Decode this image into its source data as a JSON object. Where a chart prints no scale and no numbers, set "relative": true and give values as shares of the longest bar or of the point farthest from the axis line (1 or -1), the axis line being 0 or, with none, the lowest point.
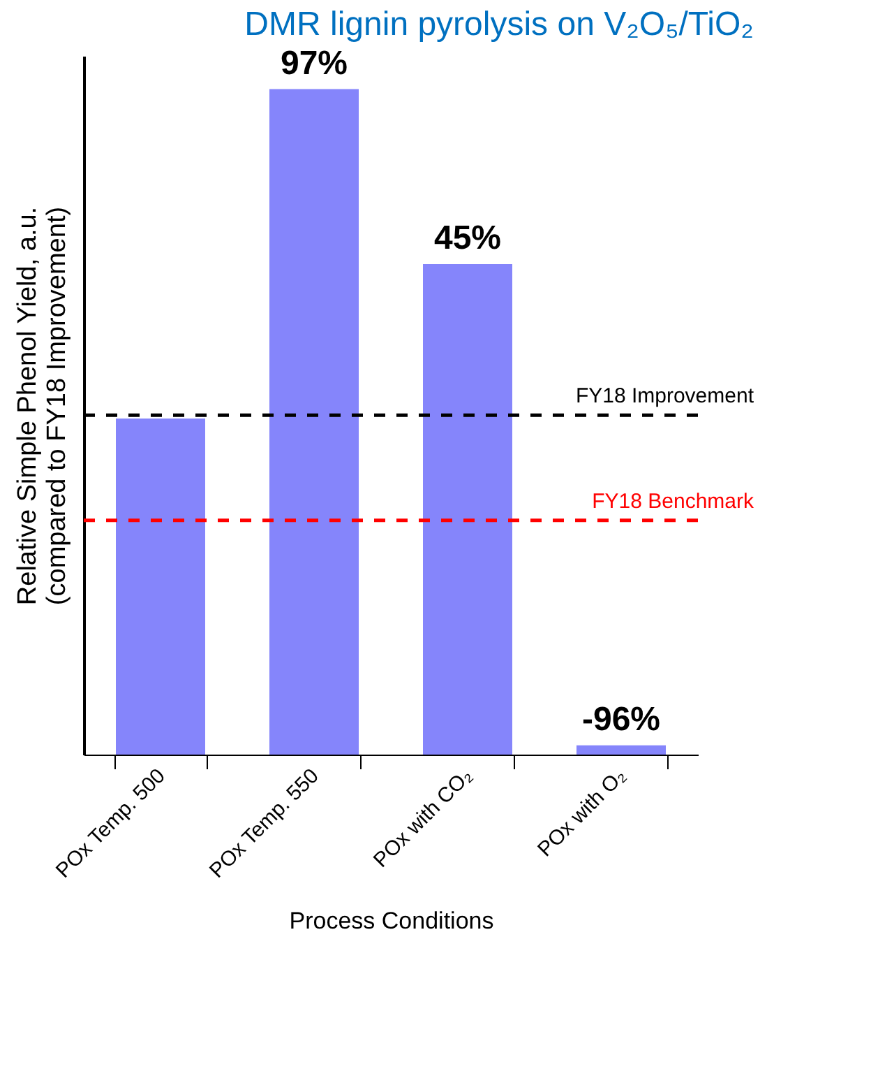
{
  "chart_data": {
    "type": "bar",
    "title": "DMR lignin pyrolysis on V₂O₅/TiO₂",
    "xlabel": "Process Conditions",
    "ylabel": "Relative Simple Phenol Yield, a.u.\n(compared to  FY18 Improvement)",
    "categories": [
      "POx Temp. 500",
      "POx Temp. 550",
      "POx with CO₂",
      "POx with O₂"
    ],
    "values": [
      0.505,
      1,
      0.737,
      0.014
    ],
    "color": "#8585fb",
    "relative": true,
    "annotations": [
      {
        "text": "97%",
        "x": "POx Temp. 550",
        "y": 1
      },
      {
        "text": "45%",
        "x": "POx with CO₂",
        "y": 0.737
      },
      {
        "text": "-96%",
        "x": "POx with O₂",
        "y": 0.014
      }
    ],
    "ref_lines": [
      {
        "axis": "y",
        "value": 0.51,
        "label": "FY18 Improvement",
        "color": "#000000",
        "line_style": "dashed"
      },
      {
        "axis": "y",
        "value": 0.352,
        "label": "FY18 Benchmark",
        "color": "#ff0000",
        "line_style": "dashed"
      }
    ],
    "grid": false
  }
}
